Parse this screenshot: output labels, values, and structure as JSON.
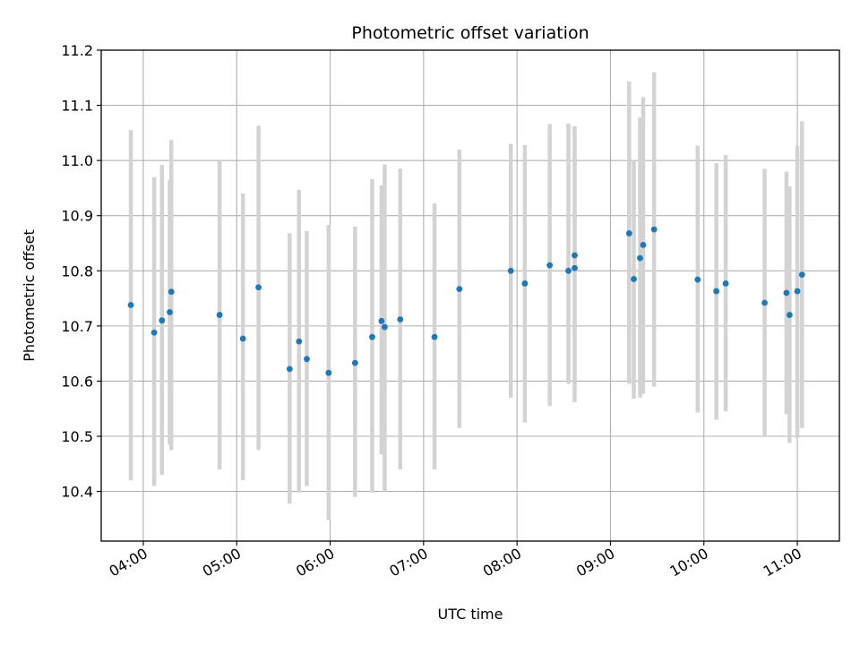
{
  "chart_data": {
    "type": "scatter",
    "title": "Photometric offset variation",
    "xlabel": "UTC time",
    "ylabel": "Photometric offset",
    "xlim": [
      "03:33",
      "11:27"
    ],
    "ylim": [
      10.31,
      11.2
    ],
    "grid": true,
    "x_ticks": [
      "04:00",
      "05:00",
      "06:00",
      "07:00",
      "08:00",
      "09:00",
      "10:00",
      "11:00"
    ],
    "y_ticks": [
      "10.4",
      "10.5",
      "10.6",
      "10.7",
      "10.8",
      "10.9",
      "11.0",
      "11.1",
      "11.2"
    ],
    "colors": {
      "point": "#1f77b4",
      "errorbar": "#d3d3d3",
      "grid": "#b0b0b0"
    },
    "series": [
      {
        "points": [
          {
            "x": "03:52",
            "y": 10.738,
            "lo": 10.42,
            "hi": 11.055
          },
          {
            "x": "04:07",
            "y": 10.688,
            "lo": 10.41,
            "hi": 10.97
          },
          {
            "x": "04:12",
            "y": 10.71,
            "lo": 10.43,
            "hi": 10.992
          },
          {
            "x": "04:17",
            "y": 10.725,
            "lo": 10.485,
            "hi": 10.965
          },
          {
            "x": "04:18",
            "y": 10.762,
            "lo": 10.475,
            "hi": 11.037
          },
          {
            "x": "04:49",
            "y": 10.72,
            "lo": 10.44,
            "hi": 11.0
          },
          {
            "x": "05:04",
            "y": 10.677,
            "lo": 10.42,
            "hi": 10.94
          },
          {
            "x": "05:14",
            "y": 10.77,
            "lo": 10.475,
            "hi": 11.063
          },
          {
            "x": "05:34",
            "y": 10.622,
            "lo": 10.378,
            "hi": 10.868
          },
          {
            "x": "05:40",
            "y": 10.672,
            "lo": 10.398,
            "hi": 10.947
          },
          {
            "x": "05:45",
            "y": 10.64,
            "lo": 10.41,
            "hi": 10.872
          },
          {
            "x": "05:59",
            "y": 10.615,
            "lo": 10.348,
            "hi": 10.883
          },
          {
            "x": "06:16",
            "y": 10.633,
            "lo": 10.39,
            "hi": 10.88
          },
          {
            "x": "06:27",
            "y": 10.68,
            "lo": 10.398,
            "hi": 10.966
          },
          {
            "x": "06:33",
            "y": 10.709,
            "lo": 10.467,
            "hi": 10.955
          },
          {
            "x": "06:35",
            "y": 10.698,
            "lo": 10.4,
            "hi": 10.993
          },
          {
            "x": "06:45",
            "y": 10.712,
            "lo": 10.44,
            "hi": 10.985
          },
          {
            "x": "07:07",
            "y": 10.68,
            "lo": 10.44,
            "hi": 10.922
          },
          {
            "x": "07:23",
            "y": 10.767,
            "lo": 10.515,
            "hi": 11.02
          },
          {
            "x": "07:56",
            "y": 10.8,
            "lo": 10.57,
            "hi": 11.03
          },
          {
            "x": "08:05",
            "y": 10.777,
            "lo": 10.525,
            "hi": 11.028
          },
          {
            "x": "08:21",
            "y": 10.81,
            "lo": 10.555,
            "hi": 11.066
          },
          {
            "x": "08:33",
            "y": 10.8,
            "lo": 10.595,
            "hi": 11.067
          },
          {
            "x": "08:37",
            "y": 10.805,
            "lo": 10.595,
            "hi": 11.06
          },
          {
            "x": "08:37",
            "y": 10.828,
            "lo": 10.562,
            "hi": 11.062
          },
          {
            "x": "09:12",
            "y": 10.868,
            "lo": 10.595,
            "hi": 11.143
          },
          {
            "x": "09:15",
            "y": 10.785,
            "lo": 10.568,
            "hi": 11.0
          },
          {
            "x": "09:19",
            "y": 10.823,
            "lo": 10.57,
            "hi": 11.078
          },
          {
            "x": "09:21",
            "y": 10.847,
            "lo": 10.577,
            "hi": 11.115
          },
          {
            "x": "09:28",
            "y": 10.875,
            "lo": 10.59,
            "hi": 11.16
          },
          {
            "x": "09:56",
            "y": 10.784,
            "lo": 10.543,
            "hi": 11.027
          },
          {
            "x": "10:08",
            "y": 10.763,
            "lo": 10.53,
            "hi": 10.995
          },
          {
            "x": "10:14",
            "y": 10.777,
            "lo": 10.545,
            "hi": 11.01
          },
          {
            "x": "10:39",
            "y": 10.742,
            "lo": 10.5,
            "hi": 10.985
          },
          {
            "x": "10:53",
            "y": 10.76,
            "lo": 10.54,
            "hi": 10.98
          },
          {
            "x": "10:55",
            "y": 10.72,
            "lo": 10.488,
            "hi": 10.953
          },
          {
            "x": "11:00",
            "y": 10.763,
            "lo": 10.497,
            "hi": 11.027
          },
          {
            "x": "11:03",
            "y": 10.793,
            "lo": 10.515,
            "hi": 11.071
          }
        ]
      }
    ]
  }
}
